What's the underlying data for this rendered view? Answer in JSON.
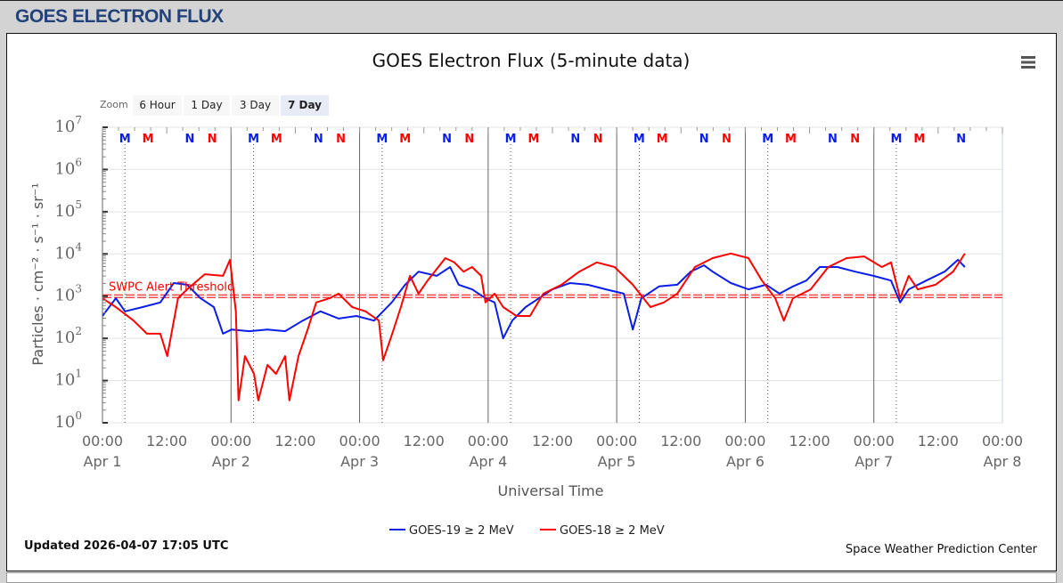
{
  "header": {
    "title": "GOES ELECTRON FLUX"
  },
  "menu_icon": "hamburger-menu-icon",
  "zoom": {
    "label": "Zoom",
    "buttons": [
      "6 Hour",
      "1 Day",
      "3 Day",
      "7 Day"
    ],
    "selected": "7 Day"
  },
  "footer": {
    "updated": "Updated 2026-04-07 17:05 UTC",
    "credit": "Space Weather Prediction Center"
  },
  "colors": {
    "goes19": "#0a1ee8",
    "goes18": "#ff0000",
    "threshold": "#ff0000",
    "header_text": "#23427a"
  },
  "chart_data": {
    "type": "line",
    "title": "GOES Electron Flux (5-minute data)",
    "xlabel": "Universal Time",
    "ylabel": "Particles · cm⁻² · s⁻¹ · sr⁻¹",
    "yscale": "log",
    "ylim_log10": [
      0,
      7
    ],
    "xlim_hours_from_apr1": [
      0,
      168
    ],
    "x_ticks": [
      {
        "time": "00:00",
        "date": "Apr 1"
      },
      {
        "time": "12:00",
        "date": ""
      },
      {
        "time": "00:00",
        "date": "Apr 2"
      },
      {
        "time": "12:00",
        "date": ""
      },
      {
        "time": "00:00",
        "date": "Apr 3"
      },
      {
        "time": "12:00",
        "date": ""
      },
      {
        "time": "00:00",
        "date": "Apr 4"
      },
      {
        "time": "12:00",
        "date": ""
      },
      {
        "time": "00:00",
        "date": "Apr 5"
      },
      {
        "time": "12:00",
        "date": ""
      },
      {
        "time": "00:00",
        "date": "Apr 6"
      },
      {
        "time": "12:00",
        "date": ""
      },
      {
        "time": "00:00",
        "date": "Apr 7"
      },
      {
        "time": "12:00",
        "date": ""
      },
      {
        "time": "00:00",
        "date": "Apr 8"
      }
    ],
    "y_ticks": [
      {
        "base": "10",
        "exp": "0"
      },
      {
        "base": "10",
        "exp": "1"
      },
      {
        "base": "10",
        "exp": "2"
      },
      {
        "base": "10",
        "exp": "3"
      },
      {
        "base": "10",
        "exp": "4"
      },
      {
        "base": "10",
        "exp": "5"
      },
      {
        "base": "10",
        "exp": "6"
      },
      {
        "base": "10",
        "exp": "7"
      }
    ],
    "threshold": {
      "label": "SWPC Alert Threshold",
      "value": 1000
    },
    "markers": [
      {
        "label": "M",
        "color": "blue",
        "hour": 4.2
      },
      {
        "label": "M",
        "color": "red",
        "hour": 8.5
      },
      {
        "label": "N",
        "color": "blue",
        "hour": 16.3
      },
      {
        "label": "N",
        "color": "red",
        "hour": 20.5
      },
      {
        "label": "M",
        "color": "blue",
        "hour": 28.2
      },
      {
        "label": "M",
        "color": "red",
        "hour": 32.5
      },
      {
        "label": "N",
        "color": "blue",
        "hour": 40.3
      },
      {
        "label": "N",
        "color": "red",
        "hour": 44.5
      },
      {
        "label": "M",
        "color": "blue",
        "hour": 52.2
      },
      {
        "label": "M",
        "color": "red",
        "hour": 56.5
      },
      {
        "label": "N",
        "color": "blue",
        "hour": 64.3
      },
      {
        "label": "N",
        "color": "red",
        "hour": 68.5
      },
      {
        "label": "M",
        "color": "blue",
        "hour": 76.2
      },
      {
        "label": "M",
        "color": "red",
        "hour": 80.5
      },
      {
        "label": "N",
        "color": "blue",
        "hour": 88.3
      },
      {
        "label": "N",
        "color": "red",
        "hour": 92.5
      },
      {
        "label": "M",
        "color": "blue",
        "hour": 100.2
      },
      {
        "label": "M",
        "color": "red",
        "hour": 104.5
      },
      {
        "label": "N",
        "color": "blue",
        "hour": 112.3
      },
      {
        "label": "N",
        "color": "red",
        "hour": 116.5
      },
      {
        "label": "M",
        "color": "blue",
        "hour": 124.2
      },
      {
        "label": "M",
        "color": "red",
        "hour": 128.5
      },
      {
        "label": "N",
        "color": "blue",
        "hour": 136.3
      },
      {
        "label": "N",
        "color": "red",
        "hour": 140.5
      },
      {
        "label": "M",
        "color": "blue",
        "hour": 148.2
      },
      {
        "label": "M",
        "color": "red",
        "hour": 152.5
      },
      {
        "label": "N",
        "color": "blue",
        "hour": 160.3
      }
    ],
    "series": [
      {
        "name": "GOES-19 ≥ 2 MeV",
        "color": "#0a1ee8",
        "points_hour_log10": [
          [
            0,
            2.53
          ],
          [
            2.5,
            2.95
          ],
          [
            4.2,
            2.64
          ],
          [
            7.5,
            2.74
          ],
          [
            10.8,
            2.85
          ],
          [
            13.3,
            3.31
          ],
          [
            15.8,
            3.27
          ],
          [
            18.3,
            2.95
          ],
          [
            20.8,
            2.74
          ],
          [
            22.5,
            2.11
          ],
          [
            24.1,
            2.21
          ],
          [
            27.4,
            2.17
          ],
          [
            30.8,
            2.21
          ],
          [
            34.1,
            2.17
          ],
          [
            37.4,
            2.42
          ],
          [
            40.7,
            2.64
          ],
          [
            44.1,
            2.47
          ],
          [
            47.4,
            2.53
          ],
          [
            50.7,
            2.42
          ],
          [
            54.0,
            2.85
          ],
          [
            56.5,
            3.27
          ],
          [
            59.0,
            3.58
          ],
          [
            62.4,
            3.48
          ],
          [
            64.9,
            3.69
          ],
          [
            66.5,
            3.27
          ],
          [
            69.0,
            3.16
          ],
          [
            71.5,
            2.95
          ],
          [
            73.2,
            2.85
          ],
          [
            74.8,
            2.0
          ],
          [
            76.5,
            2.42
          ],
          [
            79.0,
            2.74
          ],
          [
            81.5,
            2.95
          ],
          [
            84.0,
            3.16
          ],
          [
            87.3,
            3.31
          ],
          [
            90.6,
            3.27
          ],
          [
            94.0,
            3.16
          ],
          [
            97.3,
            3.06
          ],
          [
            99.0,
            2.21
          ],
          [
            100.6,
            2.95
          ],
          [
            103.9,
            3.23
          ],
          [
            107.3,
            3.27
          ],
          [
            109.8,
            3.58
          ],
          [
            112.3,
            3.73
          ],
          [
            113.9,
            3.58
          ],
          [
            117.3,
            3.31
          ],
          [
            120.6,
            3.16
          ],
          [
            123.9,
            3.27
          ],
          [
            126.4,
            3.06
          ],
          [
            128.9,
            3.23
          ],
          [
            131.4,
            3.37
          ],
          [
            133.9,
            3.69
          ],
          [
            137.2,
            3.69
          ],
          [
            140.5,
            3.58
          ],
          [
            143.9,
            3.48
          ],
          [
            147.2,
            3.37
          ],
          [
            148.9,
            2.85
          ],
          [
            150.5,
            3.16
          ],
          [
            153.8,
            3.37
          ],
          [
            157.2,
            3.58
          ],
          [
            159.7,
            3.86
          ],
          [
            161.0,
            3.69
          ]
        ]
      },
      {
        "name": "GOES-18 ≥ 2 MeV",
        "color": "#ff0000",
        "points_hour_log10": [
          [
            0,
            2.95
          ],
          [
            2.5,
            2.74
          ],
          [
            5.8,
            2.42
          ],
          [
            8.3,
            2.11
          ],
          [
            10.8,
            2.11
          ],
          [
            12.1,
            1.58
          ],
          [
            14.1,
            2.95
          ],
          [
            15.8,
            3.16
          ],
          [
            19.1,
            3.52
          ],
          [
            22.5,
            3.48
          ],
          [
            23.8,
            3.86
          ],
          [
            24.9,
            2.64
          ],
          [
            25.4,
            0.53
          ],
          [
            26.6,
            1.58
          ],
          [
            28.3,
            1.16
          ],
          [
            29.1,
            0.53
          ],
          [
            30.8,
            1.37
          ],
          [
            32.4,
            1.16
          ],
          [
            34.1,
            1.58
          ],
          [
            34.9,
            0.53
          ],
          [
            36.6,
            1.58
          ],
          [
            38.3,
            2.21
          ],
          [
            39.9,
            2.85
          ],
          [
            42.4,
            2.95
          ],
          [
            44.1,
            3.06
          ],
          [
            46.6,
            2.74
          ],
          [
            49.1,
            2.64
          ],
          [
            51.6,
            2.42
          ],
          [
            52.4,
            1.48
          ],
          [
            54.1,
            2.11
          ],
          [
            55.7,
            2.74
          ],
          [
            57.4,
            3.48
          ],
          [
            59.0,
            3.06
          ],
          [
            60.7,
            3.37
          ],
          [
            64.0,
            3.9
          ],
          [
            65.7,
            3.8
          ],
          [
            67.4,
            3.58
          ],
          [
            69.0,
            3.69
          ],
          [
            70.7,
            3.48
          ],
          [
            71.5,
            2.85
          ],
          [
            73.2,
            3.06
          ],
          [
            74.8,
            2.74
          ],
          [
            77.3,
            2.53
          ],
          [
            79.8,
            2.53
          ],
          [
            82.3,
            3.06
          ],
          [
            85.7,
            3.27
          ],
          [
            89.0,
            3.58
          ],
          [
            92.3,
            3.8
          ],
          [
            95.6,
            3.69
          ],
          [
            99.0,
            3.27
          ],
          [
            102.3,
            2.74
          ],
          [
            104.8,
            2.85
          ],
          [
            107.3,
            3.06
          ],
          [
            110.6,
            3.69
          ],
          [
            113.9,
            3.9
          ],
          [
            117.3,
            4.01
          ],
          [
            120.6,
            3.9
          ],
          [
            123.1,
            3.37
          ],
          [
            125.6,
            2.95
          ],
          [
            127.2,
            2.42
          ],
          [
            128.9,
            2.95
          ],
          [
            132.2,
            3.16
          ],
          [
            135.5,
            3.69
          ],
          [
            138.9,
            3.9
          ],
          [
            142.2,
            3.94
          ],
          [
            145.5,
            3.69
          ],
          [
            147.2,
            3.8
          ],
          [
            148.9,
            2.95
          ],
          [
            150.5,
            3.48
          ],
          [
            152.2,
            3.16
          ],
          [
            155.5,
            3.27
          ],
          [
            158.8,
            3.58
          ],
          [
            161.0,
            4.01
          ]
        ]
      }
    ],
    "legend": "bottom-center"
  }
}
